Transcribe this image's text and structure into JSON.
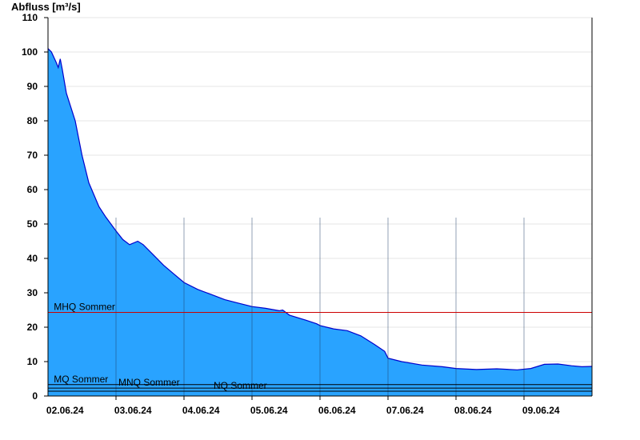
{
  "chart_data": {
    "type": "area",
    "ylabel": "Abfluss [m³/s]",
    "ylim": [
      0,
      110
    ],
    "yticks": [
      0,
      10,
      20,
      30,
      40,
      50,
      60,
      70,
      80,
      90,
      100,
      110
    ],
    "xlim_days": [
      0,
      8
    ],
    "x_unit": "days from 01.06.24 18:00",
    "x_ticks": [
      {
        "label": "02.06.24",
        "day": 0.25
      },
      {
        "label": "03.06.24",
        "day": 1.25
      },
      {
        "label": "04.06.24",
        "day": 2.25
      },
      {
        "label": "05.06.24",
        "day": 3.25
      },
      {
        "label": "06.06.24",
        "day": 4.25
      },
      {
        "label": "07.06.24",
        "day": 5.25
      },
      {
        "label": "08.06.24",
        "day": 6.25
      },
      {
        "label": "09.06.24",
        "day": 7.25
      }
    ],
    "day_dividers": [
      1,
      2,
      3,
      4,
      5,
      6,
      7
    ],
    "grid": "horizontal",
    "series": [
      {
        "type": "area",
        "fill": "#29A3FF",
        "stroke": "#0000CC",
        "points": [
          [
            0.0,
            101.0
          ],
          [
            0.05,
            100.0
          ],
          [
            0.12,
            97.0
          ],
          [
            0.15,
            95.5
          ],
          [
            0.18,
            98.0
          ],
          [
            0.21,
            95.0
          ],
          [
            0.27,
            88.0
          ],
          [
            0.4,
            80.0
          ],
          [
            0.5,
            70.0
          ],
          [
            0.6,
            62.0
          ],
          [
            0.75,
            55.0
          ],
          [
            0.85,
            52.0
          ],
          [
            1.0,
            48.0
          ],
          [
            1.1,
            45.5
          ],
          [
            1.2,
            44.0
          ],
          [
            1.32,
            45.0
          ],
          [
            1.4,
            44.0
          ],
          [
            1.55,
            41.0
          ],
          [
            1.7,
            38.0
          ],
          [
            1.85,
            35.5
          ],
          [
            2.0,
            33.0
          ],
          [
            2.2,
            31.0
          ],
          [
            2.4,
            29.5
          ],
          [
            2.6,
            28.0
          ],
          [
            2.8,
            27.0
          ],
          [
            3.0,
            26.0
          ],
          [
            3.2,
            25.5
          ],
          [
            3.4,
            24.8
          ],
          [
            3.45,
            25.0
          ],
          [
            3.55,
            23.5
          ],
          [
            3.8,
            22.0
          ],
          [
            3.95,
            21.0
          ],
          [
            4.0,
            20.5
          ],
          [
            4.2,
            19.5
          ],
          [
            4.4,
            19.0
          ],
          [
            4.6,
            17.5
          ],
          [
            4.8,
            15.0
          ],
          [
            4.95,
            13.0
          ],
          [
            5.0,
            11.0
          ],
          [
            5.2,
            10.0
          ],
          [
            5.5,
            9.0
          ],
          [
            5.8,
            8.5
          ],
          [
            6.0,
            8.0
          ],
          [
            6.3,
            7.7
          ],
          [
            6.6,
            7.9
          ],
          [
            6.9,
            7.6
          ],
          [
            7.1,
            8.0
          ],
          [
            7.3,
            9.2
          ],
          [
            7.5,
            9.3
          ],
          [
            7.7,
            8.8
          ],
          [
            7.85,
            8.5
          ],
          [
            8.0,
            8.6
          ]
        ]
      }
    ],
    "reference_lines": [
      {
        "name": "MHQ Sommer",
        "value": 24.3,
        "color": "#CC0000",
        "label_day": 0.05
      },
      {
        "name": "MQ Sommer",
        "value": 3.3,
        "color": "#000000",
        "label_day": 0.05
      },
      {
        "name": "MNQ Sommer",
        "value": 2.3,
        "color": "#000000",
        "label_day": 1.0
      },
      {
        "name": "NQ Sommer",
        "value": 1.4,
        "color": "#000000",
        "label_day": 2.4
      }
    ]
  }
}
